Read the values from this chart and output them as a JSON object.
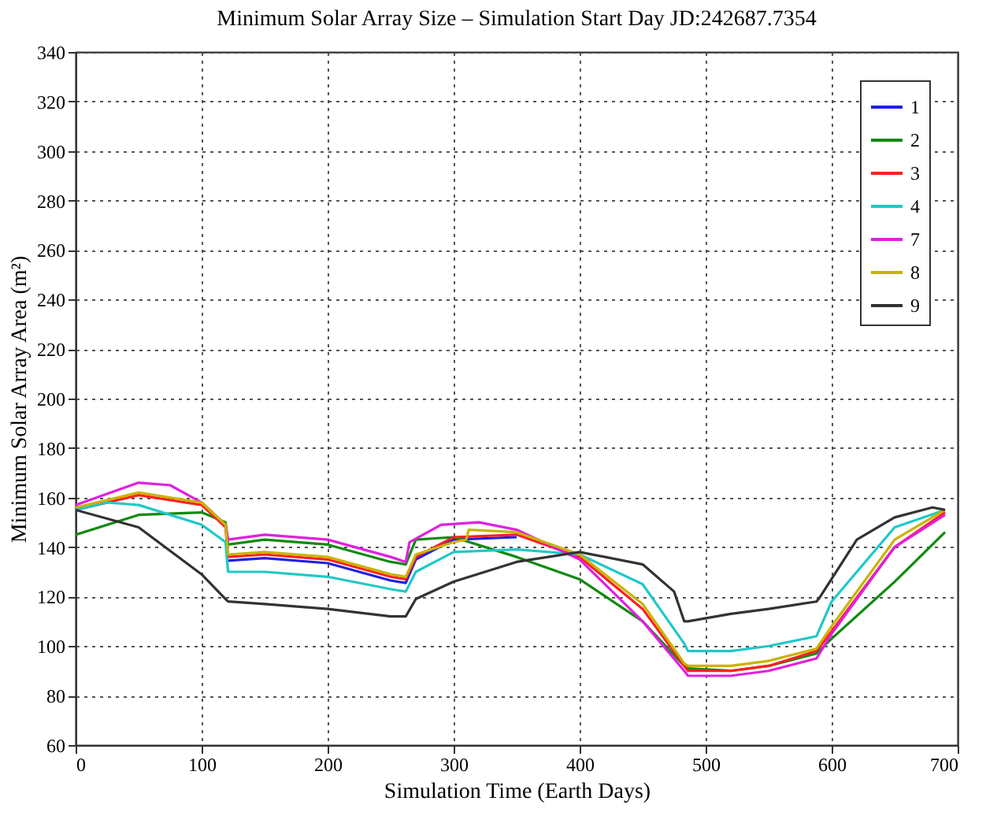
{
  "chart_data": {
    "type": "line",
    "title": "Minimum Solar Array Size – Simulation Start Day JD:242687.7354",
    "xlabel": "Simulation Time (Earth Days)",
    "ylabel": "Minimum Solar Array Area (m²)",
    "xlim": [
      0,
      700
    ],
    "xticks": [
      0,
      100,
      200,
      300,
      400,
      500,
      600,
      700
    ],
    "ylim": [
      60,
      340
    ],
    "yticks": [
      60,
      80,
      100,
      120,
      140,
      160,
      180,
      200,
      220,
      240,
      260,
      280,
      300,
      320,
      340
    ],
    "grid": true,
    "legend": "top right",
    "line_style": "solid",
    "marker": "none",
    "series": [
      {
        "name": "1",
        "color": "#2020e0",
        "x": [
          121,
          150,
          200,
          250,
          262,
          270,
          300,
          350
        ],
        "values": [
          134.5,
          135.5,
          133.5,
          126.5,
          125.5,
          135,
          143,
          144
        ]
      },
      {
        "name": "2",
        "color": "#108a10",
        "x": [
          0,
          50,
          100,
          119,
          121,
          150,
          200,
          250,
          262,
          270,
          300,
          350,
          400,
          450,
          483,
          486,
          520,
          550,
          588,
          600,
          650,
          690
        ],
        "values": [
          145,
          153,
          154,
          150,
          141,
          143,
          141,
          134,
          133,
          143,
          144,
          136,
          127,
          110,
          92,
          91,
          90,
          92,
          97,
          103,
          126,
          146
        ]
      },
      {
        "name": "3",
        "color": "#ff2020",
        "x": [
          0,
          50,
          100,
          119,
          121,
          150,
          200,
          250,
          262,
          270,
          300,
          350,
          400,
          450,
          483,
          486,
          520,
          550,
          588,
          600,
          650,
          690
        ],
        "values": [
          155,
          161,
          157,
          148,
          136,
          137,
          135,
          128,
          127,
          136,
          144,
          145,
          136,
          115,
          92,
          90,
          90,
          92,
          98,
          106,
          140,
          154
        ]
      },
      {
        "name": "4",
        "color": "#20c8c8",
        "x": [
          0,
          25,
          50,
          100,
          119,
          121,
          150,
          200,
          250,
          262,
          270,
          300,
          350,
          400,
          450,
          483,
          486,
          520,
          550,
          588,
          600,
          650,
          690
        ],
        "values": [
          155,
          158,
          157,
          149,
          142,
          130,
          130,
          128,
          123,
          122,
          130,
          138,
          139,
          137,
          125,
          101,
          98,
          98,
          100,
          104,
          118,
          148,
          155
        ]
      },
      {
        "name": "7",
        "color": "#e020e0",
        "x": [
          0,
          50,
          75,
          100,
          119,
          121,
          150,
          200,
          250,
          262,
          265,
          290,
          320,
          350,
          400,
          450,
          483,
          486,
          520,
          550,
          588,
          600,
          650,
          690
        ],
        "values": [
          157,
          166,
          165,
          158,
          149,
          143,
          145,
          143,
          136,
          134,
          142,
          149,
          150,
          147,
          135,
          110,
          90,
          88,
          88,
          90,
          95,
          105,
          140,
          153
        ]
      },
      {
        "name": "8",
        "color": "#c8b400",
        "x": [
          0,
          50,
          100,
          119,
          121,
          150,
          200,
          250,
          262,
          270,
          300,
          310,
          312,
          350,
          400,
          450,
          483,
          486,
          520,
          550,
          588,
          600,
          650,
          690
        ],
        "values": [
          156,
          162,
          158,
          149,
          137,
          138,
          136,
          129,
          128,
          137,
          142,
          143,
          147,
          146,
          137,
          117,
          93,
          92,
          92,
          94,
          99,
          108,
          143,
          155
        ]
      },
      {
        "name": "9",
        "color": "#333333",
        "x": [
          0,
          50,
          100,
          119,
          121,
          150,
          200,
          250,
          262,
          270,
          300,
          350,
          400,
          450,
          475,
          483,
          486,
          520,
          550,
          588,
          591,
          620,
          650,
          680,
          690
        ],
        "values": [
          155,
          148,
          129,
          119,
          118,
          117,
          115,
          112,
          112,
          119,
          126,
          134,
          138,
          133,
          122,
          110,
          110,
          113,
          115,
          118,
          120,
          143,
          152,
          156,
          155
        ]
      }
    ]
  }
}
